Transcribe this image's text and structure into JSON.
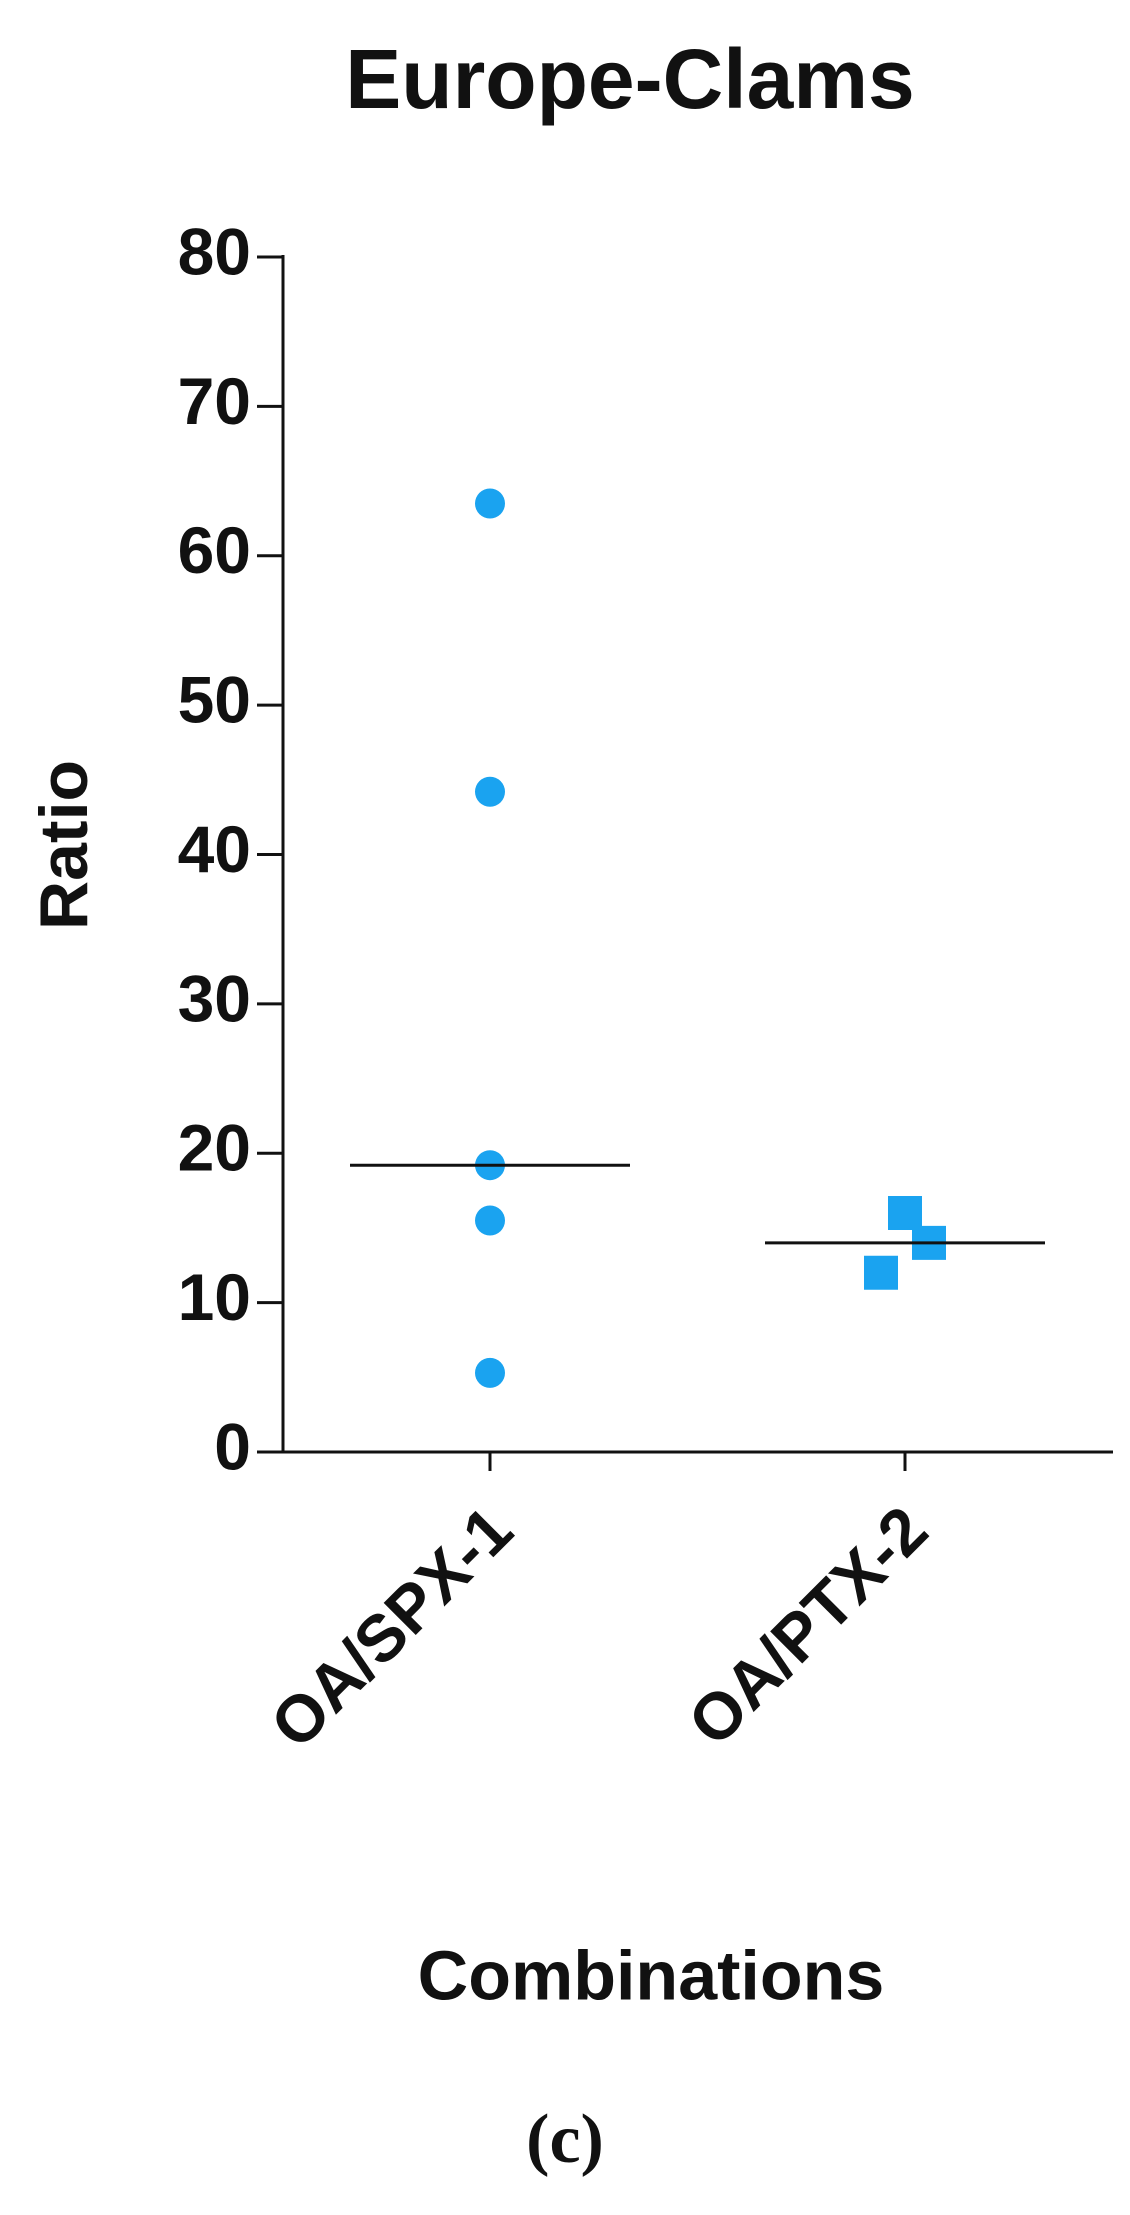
{
  "chart_data": {
    "type": "dot",
    "title": "Europe-Clams",
    "xlabel": "Combinations",
    "ylabel": "Ratio",
    "categories": [
      "OA/SPX-1",
      "OA/PTX-2"
    ],
    "values": [
      [
        63.5,
        44.2,
        19.2,
        15.5,
        5.3
      ],
      [
        12,
        16,
        14
      ]
    ],
    "medians": [
      19.2,
      14
    ],
    "markers": [
      "circle",
      "square"
    ],
    "color": "#1aa3f0",
    "ylim": [
      0,
      80
    ],
    "yticks": [
      0,
      10,
      20,
      30,
      40,
      50,
      60,
      70,
      80
    ]
  },
  "caption": "(c)"
}
